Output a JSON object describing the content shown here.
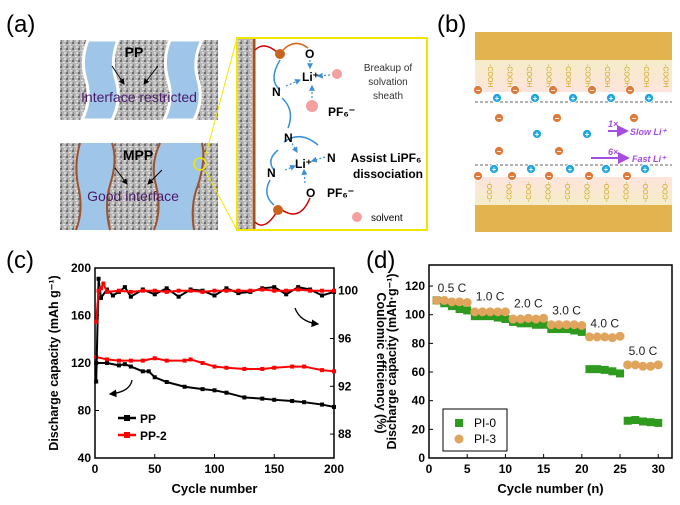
{
  "panel_labels": {
    "a": "(a)",
    "b": "(b)",
    "c": "(c)",
    "d": "(d)"
  },
  "panel_a": {
    "pp_label": "PP",
    "pp_caption": "Interface restricted",
    "mpp_label": "MPP",
    "mpp_caption": "Good interface",
    "zoom": {
      "o1": "O",
      "li1": "Li⁺",
      "n1": "N",
      "pf1": "PF₆⁻",
      "breakup": [
        "Breakup of",
        "solvation",
        "sheath"
      ],
      "n2": "N",
      "n3": "N",
      "n4": "N",
      "li2": "Li⁺",
      "o2": "O",
      "pf2": "PF₆⁻",
      "assist": [
        "Assist LiPF₆",
        "dissociation"
      ],
      "solvent": "solvent"
    },
    "colors": {
      "channel": "#9fc5e8",
      "brown": "#a0522d",
      "yellow": "#f2e600",
      "pink": "#f4a0a0",
      "text": "#4b1a6b"
    }
  },
  "panel_b": {
    "group_top": "-COOH",
    "group_bottom": "-COO-",
    "slow_mult": "1×",
    "slow_label": "Slow Li⁺",
    "fast_mult": "6×",
    "fast_label": "Fast Li⁺",
    "colors": {
      "electrode": "#e2b34e",
      "anion": "#e07a3a",
      "cation": "#1ea6e0",
      "arrow": "#a64ce0"
    }
  },
  "chart_data": [
    {
      "type": "scatter",
      "title": "",
      "xlabel": "Cycle number",
      "ylabel": "Discharge capacity (mAh g⁻¹)",
      "ylabel_right": "Coulomic efficiency (%)",
      "xlim": [
        0,
        200
      ],
      "ylim": [
        40,
        200
      ],
      "ylim_right": [
        86,
        101.9
      ],
      "xticks": [
        0,
        50,
        100,
        150,
        200
      ],
      "yticks": [
        40,
        80,
        120,
        160,
        200
      ],
      "yticks_right": [
        88,
        92,
        96,
        100
      ],
      "legend": "bottom-left",
      "series": [
        {
          "name": "PP",
          "color": "#000000",
          "axis": "left",
          "x": [
            1,
            10,
            20,
            25,
            30,
            40,
            45,
            50,
            60,
            75,
            90,
            100,
            110,
            125,
            140,
            150,
            165,
            175,
            190,
            200
          ],
          "values": [
            120,
            120,
            118,
            119,
            117,
            113,
            113,
            108,
            104,
            100,
            98,
            97,
            95,
            91,
            90,
            89,
            88,
            87,
            85,
            83
          ]
        },
        {
          "name": "PP-2",
          "color": "#ff0000",
          "axis": "left",
          "x": [
            1,
            10,
            20,
            30,
            40,
            50,
            60,
            75,
            80,
            90,
            100,
            110,
            125,
            140,
            150,
            165,
            175,
            190,
            200
          ],
          "values": [
            125,
            123,
            122,
            122,
            122,
            124,
            122,
            122,
            123,
            120,
            117,
            116,
            115,
            115,
            116,
            117,
            117,
            114,
            113
          ]
        },
        {
          "name": "PP CE",
          "color": "#000000",
          "axis": "right",
          "legend": false,
          "x": [
            1,
            3,
            5,
            10,
            15,
            20,
            25,
            30,
            40,
            50,
            60,
            70,
            80,
            90,
            100,
            110,
            120,
            130,
            140,
            150,
            160,
            170,
            180,
            190,
            200
          ],
          "values": [
            92.4,
            101,
            99.4,
            100.1,
            99.6,
            99.9,
            100.3,
            99.5,
            100.1,
            99.7,
            100.2,
            99.5,
            100.1,
            100,
            99.6,
            100.2,
            99.8,
            99.9,
            100.2,
            100.3,
            99.7,
            100.3,
            100.1,
            99.6,
            99.9
          ]
        },
        {
          "name": "PP-2 CE",
          "color": "#ff0000",
          "axis": "right",
          "legend": false,
          "x": [
            1,
            3,
            5,
            7,
            10,
            20,
            30,
            40,
            50,
            60,
            70,
            80,
            90,
            100,
            110,
            120,
            130,
            140,
            150,
            160,
            170,
            180,
            190,
            200
          ],
          "values": [
            97.4,
            100,
            100.2,
            100.6,
            99.9,
            100,
            99.9,
            100,
            100,
            99.9,
            100,
            100,
            99.9,
            100,
            100,
            100,
            100,
            100.1,
            100,
            100,
            100.1,
            100,
            100,
            100
          ]
        }
      ]
    },
    {
      "type": "scatter",
      "title": "",
      "xlabel": "Cycle number (n)",
      "ylabel": "Discharge capacity (mAh·g⁻¹)",
      "xlim": [
        0,
        31.8
      ],
      "ylim": [
        0,
        134.7
      ],
      "xticks": [
        0,
        5,
        10,
        15,
        20,
        25,
        30
      ],
      "yticks": [
        0,
        20,
        40,
        60,
        80,
        100,
        120
      ],
      "legend": "bottom-left",
      "annotations": [
        {
          "text": "0.5 C",
          "x": 3,
          "y": 116
        },
        {
          "text": "1.0 C",
          "x": 8,
          "y": 110
        },
        {
          "text": "2.0 C",
          "x": 13,
          "y": 105
        },
        {
          "text": "3.0 C",
          "x": 18,
          "y": 100
        },
        {
          "text": "4.0 C",
          "x": 23,
          "y": 91
        },
        {
          "text": "5.0 C",
          "x": 28,
          "y": 72
        }
      ],
      "x": [
        1,
        2,
        3,
        4,
        5,
        6,
        7,
        8,
        9,
        10,
        11,
        12,
        13,
        14,
        15,
        16,
        17,
        18,
        19,
        20,
        21,
        22,
        23,
        24,
        25,
        26,
        27,
        28,
        29,
        30
      ],
      "series": [
        {
          "name": "PI-0",
          "color": "#2e9a1e",
          "marker": "square",
          "values": [
            110,
            108,
            106,
            104,
            103,
            99,
            99,
            99,
            98,
            97,
            95,
            94,
            94,
            93,
            93,
            90,
            90,
            90,
            89,
            88,
            62,
            62,
            61.5,
            60.5,
            59,
            26,
            26.5,
            25.5,
            25,
            24.5
          ]
        },
        {
          "name": "PI-3",
          "color": "#e0a45c",
          "marker": "circle",
          "values": [
            110,
            110,
            109,
            109,
            108.5,
            102,
            102,
            102,
            102,
            102,
            97,
            97,
            97.5,
            97,
            97.5,
            93,
            93,
            93,
            93,
            92.5,
            84.5,
            84.5,
            84.5,
            84,
            85,
            65,
            65,
            64,
            64,
            65
          ]
        }
      ]
    }
  ]
}
